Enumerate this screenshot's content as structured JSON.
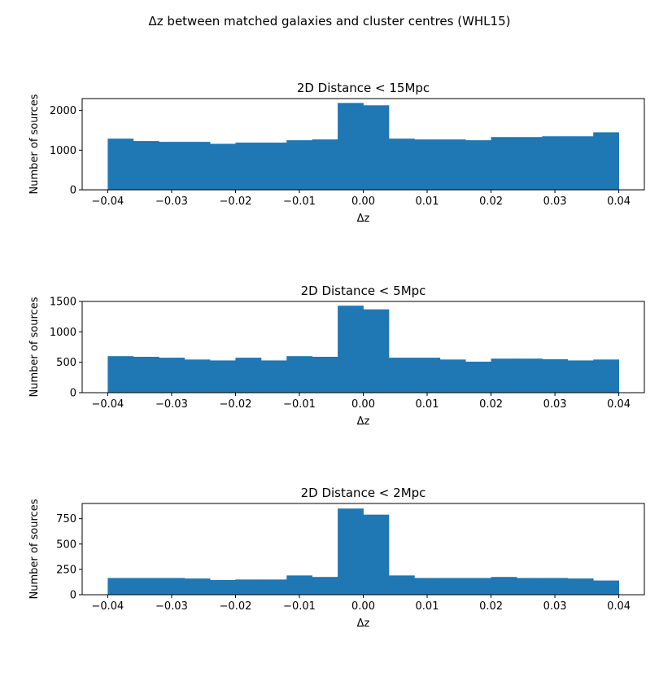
{
  "figure_title": "Δz between matched galaxies and cluster centres (WHL15)",
  "colors": {
    "bar": "#1f77b4",
    "axis": "#000000",
    "background": "#ffffff"
  },
  "chart_data": [
    {
      "type": "bar",
      "title": "2D Distance < 15Mpc",
      "xlabel": "Δz",
      "ylabel": "Number of sources",
      "xlim": [
        -0.044,
        0.044
      ],
      "ylim": [
        0,
        2300
      ],
      "xticks": [
        -0.04,
        -0.03,
        -0.02,
        -0.01,
        0.0,
        0.01,
        0.02,
        0.03,
        0.04
      ],
      "xtick_labels": [
        "−0.04",
        "−0.03",
        "−0.02",
        "−0.01",
        "0.00",
        "0.01",
        "0.02",
        "0.03",
        "0.04"
      ],
      "yticks": [
        0,
        1000,
        2000
      ],
      "ytick_labels": [
        "0",
        "1000",
        "2000"
      ],
      "bin_edges": [
        -0.04,
        -0.036,
        -0.032,
        -0.028,
        -0.024,
        -0.02,
        -0.016,
        -0.012,
        -0.008,
        -0.004,
        0.0,
        0.004,
        0.008,
        0.012,
        0.016,
        0.02,
        0.024,
        0.028,
        0.032,
        0.036,
        0.04
      ],
      "values": [
        1290,
        1230,
        1210,
        1210,
        1160,
        1190,
        1190,
        1250,
        1270,
        2190,
        2130,
        1290,
        1270,
        1270,
        1250,
        1330,
        1330,
        1350,
        1350,
        1450
      ]
    },
    {
      "type": "bar",
      "title": "2D Distance < 5Mpc",
      "xlabel": "Δz",
      "ylabel": "Number of sources",
      "xlim": [
        -0.044,
        0.044
      ],
      "ylim": [
        0,
        1500
      ],
      "xticks": [
        -0.04,
        -0.03,
        -0.02,
        -0.01,
        0.0,
        0.01,
        0.02,
        0.03,
        0.04
      ],
      "xtick_labels": [
        "−0.04",
        "−0.03",
        "−0.02",
        "−0.01",
        "0.00",
        "0.01",
        "0.02",
        "0.03",
        "0.04"
      ],
      "yticks": [
        0,
        500,
        1000,
        1500
      ],
      "ytick_labels": [
        "0",
        "500",
        "1000",
        "1500"
      ],
      "bin_edges": [
        -0.04,
        -0.036,
        -0.032,
        -0.028,
        -0.024,
        -0.02,
        -0.016,
        -0.012,
        -0.008,
        -0.004,
        0.0,
        0.004,
        0.008,
        0.012,
        0.016,
        0.02,
        0.024,
        0.028,
        0.032,
        0.036,
        0.04
      ],
      "values": [
        600,
        590,
        575,
        545,
        530,
        575,
        530,
        600,
        590,
        1430,
        1370,
        575,
        575,
        545,
        510,
        560,
        560,
        550,
        530,
        545
      ]
    },
    {
      "type": "bar",
      "title": "2D Distance < 2Mpc",
      "xlabel": "Δz",
      "ylabel": "Number of sources",
      "xlim": [
        -0.044,
        0.044
      ],
      "ylim": [
        0,
        900
      ],
      "xticks": [
        -0.04,
        -0.03,
        -0.02,
        -0.01,
        0.0,
        0.01,
        0.02,
        0.03,
        0.04
      ],
      "xtick_labels": [
        "−0.04",
        "−0.03",
        "−0.02",
        "−0.01",
        "0.00",
        "0.01",
        "0.02",
        "0.03",
        "0.04"
      ],
      "yticks": [
        0,
        250,
        500,
        750
      ],
      "ytick_labels": [
        "0",
        "250",
        "500",
        "750"
      ],
      "bin_edges": [
        -0.04,
        -0.036,
        -0.032,
        -0.028,
        -0.024,
        -0.02,
        -0.016,
        -0.012,
        -0.008,
        -0.004,
        0.0,
        0.004,
        0.008,
        0.012,
        0.016,
        0.02,
        0.024,
        0.028,
        0.032,
        0.036,
        0.04
      ],
      "values": [
        165,
        165,
        165,
        160,
        145,
        150,
        150,
        190,
        175,
        850,
        790,
        190,
        165,
        165,
        165,
        175,
        165,
        165,
        160,
        140
      ]
    }
  ]
}
